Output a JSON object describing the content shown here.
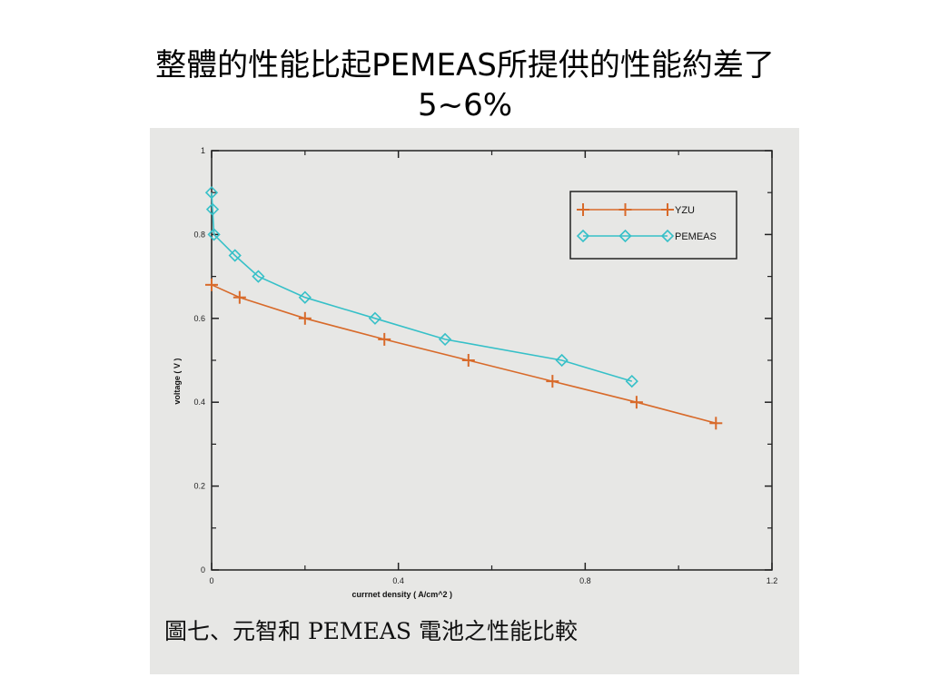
{
  "slide": {
    "title_line1": "整體的性能比起PEMEAS所提供的性能約差了",
    "title_line2": "5~6%"
  },
  "figure": {
    "caption": "圖七、元智和 PEMEAS 電池之性能比較"
  },
  "chart_data": {
    "type": "line",
    "title": "",
    "xlabel": "currnet density ( A/cm^2 )",
    "ylabel": "voltage ( V )",
    "xlim": [
      0,
      1.2
    ],
    "ylim": [
      0,
      1
    ],
    "xticks": [
      "0",
      "0.4",
      "0.8",
      "1.2"
    ],
    "xtick_values": [
      0,
      0.4,
      0.8,
      1.2
    ],
    "yticks": [
      "0",
      "0.2",
      "0.4",
      "0.6",
      "0.8",
      "1"
    ],
    "ytick_values": [
      0,
      0.2,
      0.4,
      0.6,
      0.8,
      1.0
    ],
    "grid": false,
    "legend_position": "top-right",
    "series": [
      {
        "name": "YZU",
        "color": "#d86a2a",
        "marker": "plus",
        "x": [
          0,
          0.06,
          0.2,
          0.37,
          0.55,
          0.73,
          0.91,
          1.08
        ],
        "y": [
          0.68,
          0.65,
          0.6,
          0.55,
          0.5,
          0.45,
          0.4,
          0.35
        ]
      },
      {
        "name": "PEMEAS",
        "color": "#36c0c8",
        "marker": "diamond",
        "x": [
          0,
          0.002,
          0.005,
          0.05,
          0.1,
          0.2,
          0.35,
          0.5,
          0.75,
          0.9
        ],
        "y": [
          0.9,
          0.86,
          0.8,
          0.75,
          0.7,
          0.65,
          0.6,
          0.55,
          0.5,
          0.45
        ]
      }
    ]
  }
}
